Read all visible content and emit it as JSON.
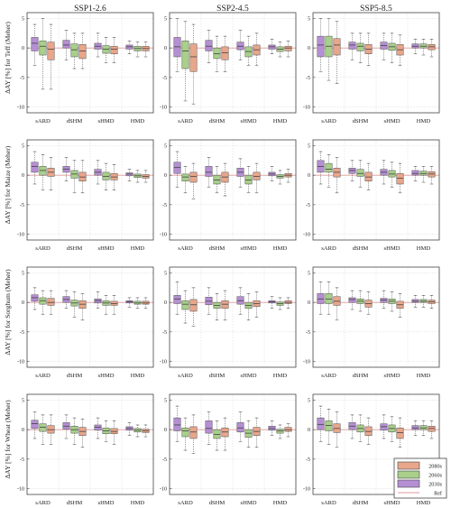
{
  "colors": {
    "2030s": "#b58fd3",
    "2060s": "#a9cf8a",
    "2080s": "#e8a68b",
    "ref": "#e0999c",
    "frame": "#444444",
    "grid": "#d4d4d4"
  },
  "chart_data": {
    "type": "box",
    "scenarios": [
      "SSP1-2.6",
      "SSP2-4.5",
      "SSP5-8.5"
    ],
    "crops_ylabels": [
      "ΔAY [%] for Teff (Meher)",
      "ΔAY [%] for Maize (Meher)",
      "ΔAY [%] for Sorghum (Meher)",
      "ΔAY [%] for Wheat (Meher)"
    ],
    "categories": [
      "sARD",
      "dSHM",
      "sHMD",
      "HMD"
    ],
    "yticks": [
      5,
      0,
      -5,
      -10
    ],
    "ylim": [
      -11,
      6
    ],
    "series": [
      "2030s",
      "2060s",
      "2080s"
    ],
    "legend": {
      "placement": "bottom-right",
      "entries": [
        "2080s",
        "2060s",
        "2030s",
        "Ref"
      ]
    },
    "ref_line": 0,
    "panels": [
      [
        [
          [
            -3,
            -0.5,
            0.8,
            1.8,
            4
          ],
          [
            -7,
            -1.2,
            0.3,
            1.2,
            5
          ],
          [
            -7,
            -2,
            -0.2,
            1,
            4
          ]
        ],
        [
          [
            -2,
            0,
            0.5,
            1.3,
            3
          ],
          [
            -3.5,
            -1.5,
            -0.3,
            0.7,
            2.5
          ],
          [
            -3.5,
            -1.8,
            -0.5,
            0.6,
            2.5
          ]
        ],
        [
          [
            -1.5,
            -0.2,
            0.3,
            0.8,
            2.5
          ],
          [
            -2.5,
            -0.9,
            -0.2,
            0.4,
            1.8
          ],
          [
            -2.5,
            -1,
            -0.2,
            0.3,
            1.8
          ]
        ],
        [
          [
            -1,
            -0.2,
            0.2,
            0.5,
            1.2
          ],
          [
            -1.5,
            -0.5,
            -0.1,
            0.3,
            1
          ],
          [
            -1.5,
            -0.5,
            -0.1,
            0.3,
            1
          ]
        ]
      ],
      [
        [
          [
            -4,
            -1.5,
            0.2,
            1.8,
            5
          ],
          [
            -9,
            -3.5,
            -0.5,
            1.2,
            4.5
          ],
          [
            -9.5,
            -4,
            -1.5,
            0.7,
            4
          ]
        ],
        [
          [
            -2.5,
            -0.5,
            0.3,
            1.3,
            3
          ],
          [
            -4,
            -1.8,
            -1,
            0,
            2
          ],
          [
            -4,
            -2,
            -0.8,
            0.2,
            2
          ]
        ],
        [
          [
            -2,
            -0.3,
            0.3,
            1,
            3
          ],
          [
            -3,
            -1.5,
            -0.6,
            0.2,
            2
          ],
          [
            -3,
            -1.2,
            -0.3,
            0.5,
            2.5
          ]
        ],
        [
          [
            -1,
            -0.2,
            0.2,
            0.5,
            1.5
          ],
          [
            -1.5,
            -0.6,
            -0.2,
            0.2,
            1
          ],
          [
            -1.5,
            -0.5,
            0,
            0.3,
            1.2
          ]
        ]
      ],
      [
        [
          [
            -4,
            -1.5,
            0.5,
            2,
            5
          ],
          [
            -5.5,
            -1.5,
            0.3,
            2,
            5
          ],
          [
            -6,
            -1.2,
            0.5,
            1.6,
            4.5
          ]
        ],
        [
          [
            -2,
            -0.2,
            0.5,
            1,
            2.5
          ],
          [
            -2.5,
            -0.5,
            0.3,
            0.8,
            2.5
          ],
          [
            -3,
            -1,
            -0.2,
            0.6,
            2.5
          ]
        ],
        [
          [
            -2,
            -0.2,
            0.4,
            1,
            2.5
          ],
          [
            -2.5,
            -0.4,
            0.2,
            0.8,
            2.5
          ],
          [
            -3,
            -1.2,
            -0.3,
            0.6,
            2.2
          ]
        ],
        [
          [
            -1,
            0,
            0.3,
            0.7,
            1.5
          ],
          [
            -1.2,
            0,
            0.3,
            0.7,
            1.5
          ],
          [
            -1.5,
            -0.3,
            0.2,
            0.6,
            1.5
          ]
        ]
      ]
    ],
    "panels_rows_2_to_4": [
      [
        [
          [
            [
              -1.5,
              0.5,
              1.5,
              2.2,
              4
            ],
            [
              -2.5,
              0,
              0.8,
              1.5,
              3.5
            ],
            [
              -2.5,
              -0.2,
              0.5,
              1.2,
              3
            ]
          ],
          [
            [
              -1,
              0.5,
              1,
              1.5,
              3
            ],
            [
              -3,
              -0.5,
              0.2,
              0.8,
              2.5
            ],
            [
              -3,
              -1,
              -0.3,
              0.5,
              2.5
            ]
          ],
          [
            [
              -1.5,
              0,
              0.5,
              1,
              2.5
            ],
            [
              -2.5,
              -0.8,
              -0.2,
              0.5,
              2
            ],
            [
              -2.5,
              -0.8,
              -0.3,
              0.3,
              1.8
            ]
          ],
          [
            [
              -1,
              -0.1,
              0.2,
              0.4,
              1
            ],
            [
              -1.2,
              -0.4,
              -0.1,
              0.2,
              0.8
            ],
            [
              -1.2,
              -0.5,
              -0.2,
              0.1,
              0.8
            ]
          ]
        ],
        [
          [
            [
              -2,
              0.3,
              1.3,
              2.2,
              4
            ],
            [
              -3,
              -1,
              -0.3,
              0.2,
              1.5
            ],
            [
              -4,
              -1.2,
              -0.2,
              0.5,
              2
            ]
          ],
          [
            [
              -2,
              -0.2,
              0.5,
              1.5,
              3
            ],
            [
              -3,
              -1.5,
              -0.8,
              0,
              1.5
            ],
            [
              -3.5,
              -1.2,
              -0.3,
              0.5,
              2
            ]
          ],
          [
            [
              -2,
              -0.2,
              0.5,
              1.2,
              2.8
            ],
            [
              -3,
              -1.5,
              -0.8,
              0,
              1.5
            ],
            [
              -3,
              -0.8,
              -0.2,
              0.5,
              2
            ]
          ],
          [
            [
              -1,
              -0.1,
              0.2,
              0.5,
              1.5
            ],
            [
              -1.5,
              -0.5,
              -0.2,
              0.1,
              0.8
            ],
            [
              -1.2,
              -0.3,
              0,
              0.3,
              1
            ]
          ]
        ],
        [
          [
            [
              -1.5,
              0.5,
              1.5,
              2.5,
              4
            ],
            [
              -2,
              0.5,
              1,
              2,
              3.5
            ],
            [
              -3,
              -0.3,
              0.5,
              1.2,
              3
            ]
          ],
          [
            [
              -1,
              0.3,
              0.8,
              1.2,
              2.5
            ],
            [
              -2,
              -0.2,
              0.3,
              1,
              2.5
            ],
            [
              -2.5,
              -1,
              -0.3,
              0.5,
              2
            ]
          ],
          [
            [
              -1.5,
              0,
              0.5,
              1,
              2.5
            ],
            [
              -2,
              -0.3,
              0.2,
              0.8,
              2.2
            ],
            [
              -3,
              -1.5,
              -0.5,
              0.3,
              2
            ]
          ],
          [
            [
              -1,
              0,
              0.3,
              0.8,
              1.5
            ],
            [
              -1.2,
              0,
              0.3,
              0.7,
              1.5
            ],
            [
              -1.5,
              -0.3,
              0.2,
              0.6,
              1.5
            ]
          ]
        ]
      ],
      [
        [
          [
            [
              -1.2,
              0.2,
              0.8,
              1.3,
              2.5
            ],
            [
              -2,
              -0.3,
              0.3,
              0.8,
              2
            ],
            [
              -2,
              -0.5,
              0,
              0.7,
              2
            ]
          ],
          [
            [
              -1,
              0,
              0.5,
              1,
              2
            ],
            [
              -2.5,
              -0.6,
              -0.1,
              0.4,
              1.8
            ],
            [
              -3,
              -1,
              -0.3,
              0.3,
              1.5
            ]
          ],
          [
            [
              -1,
              -0.1,
              0.3,
              0.6,
              1.8
            ],
            [
              -2,
              -0.5,
              -0.1,
              0.3,
              1.2
            ],
            [
              -2,
              -0.5,
              -0.2,
              0.2,
              1.2
            ]
          ],
          [
            [
              -0.8,
              -0.1,
              0.1,
              0.3,
              0.8
            ],
            [
              -1,
              -0.3,
              -0.1,
              0.2,
              0.8
            ],
            [
              -1,
              -0.3,
              -0.1,
              0.2,
              0.8
            ]
          ]
        ],
        [
          [
            [
              -2,
              -0.2,
              0.6,
              1.2,
              3.5
            ],
            [
              -3.5,
              -1.2,
              -0.3,
              0.3,
              2
            ],
            [
              -4,
              -1.5,
              -0.4,
              0.5,
              2.5
            ]
          ],
          [
            [
              -2,
              -0.4,
              0.2,
              0.9,
              2.5
            ],
            [
              -3,
              -1,
              -0.5,
              0,
              1.5
            ],
            [
              -3,
              -1,
              -0.3,
              0.3,
              2
            ]
          ],
          [
            [
              -2,
              -0.3,
              0.3,
              1,
              2.5
            ],
            [
              -3,
              -1,
              -0.5,
              0,
              1.5
            ],
            [
              -2.5,
              -0.7,
              -0.2,
              0.3,
              1.8
            ]
          ],
          [
            [
              -1,
              -0.1,
              0.1,
              0.3,
              1
            ],
            [
              -1.2,
              -0.5,
              -0.2,
              0.1,
              0.8
            ],
            [
              -1,
              -0.2,
              0,
              0.3,
              0.8
            ]
          ]
        ],
        [
          [
            [
              -2,
              -0.2,
              0.6,
              1.5,
              3.5
            ],
            [
              -2,
              -0.2,
              0.6,
              1.5,
              3.5
            ],
            [
              -3,
              -0.5,
              0.2,
              1,
              2.5
            ]
          ],
          [
            [
              -1.2,
              0,
              0.5,
              0.8,
              2
            ],
            [
              -1.5,
              -0.2,
              0.2,
              0.6,
              2
            ],
            [
              -2,
              -0.8,
              -0.2,
              0.4,
              1.8
            ]
          ],
          [
            [
              -1,
              0,
              0.4,
              0.7,
              2
            ],
            [
              -1.5,
              -0.2,
              0.2,
              0.6,
              1.8
            ],
            [
              -2.5,
              -1,
              -0.4,
              0.2,
              1.5
            ]
          ],
          [
            [
              -0.8,
              0,
              0.2,
              0.5,
              1.2
            ],
            [
              -0.8,
              0,
              0.2,
              0.5,
              1.2
            ],
            [
              -1,
              -0.2,
              0.1,
              0.4,
              1.2
            ]
          ]
        ]
      ],
      [
        [
          [
            [
              -1.5,
              0.2,
              1,
              1.6,
              3
            ],
            [
              -2.5,
              -0.3,
              0.4,
              1,
              2.5
            ],
            [
              -2.5,
              -0.6,
              0,
              0.7,
              2.5
            ]
          ],
          [
            [
              -1.5,
              0.1,
              0.6,
              1.2,
              2.5
            ],
            [
              -2.5,
              -0.6,
              0,
              0.6,
              2
            ],
            [
              -3,
              -1,
              -0.3,
              0.4,
              1.8
            ]
          ],
          [
            [
              -1.5,
              -0.1,
              0.4,
              0.8,
              2
            ],
            [
              -2,
              -0.7,
              -0.2,
              0.3,
              1.5
            ],
            [
              -2.5,
              -0.7,
              -0.3,
              0.2,
              1.5
            ]
          ],
          [
            [
              -1,
              -0.1,
              0.2,
              0.5,
              1.2
            ],
            [
              -1.2,
              -0.4,
              -0.1,
              0.2,
              0.8
            ],
            [
              -1.2,
              -0.5,
              -0.2,
              0.1,
              0.8
            ]
          ]
        ],
        [
          [
            [
              -2,
              -0.2,
              0.8,
              2,
              4
            ],
            [
              -3.5,
              -1.2,
              -0.2,
              0.3,
              2
            ],
            [
              -4,
              -1.5,
              -0.4,
              0.5,
              2.5
            ]
          ],
          [
            [
              -2.5,
              -0.6,
              0.2,
              1.5,
              3
            ],
            [
              -3.5,
              -1.5,
              -0.8,
              0,
              1.5
            ],
            [
              -3.5,
              -1.2,
              -0.4,
              0.3,
              2
            ]
          ],
          [
            [
              -2,
              -0.4,
              0.3,
              1.2,
              3
            ],
            [
              -3,
              -1.3,
              -0.6,
              0,
              1.5
            ],
            [
              -3,
              -1,
              -0.3,
              0.4,
              2
            ]
          ],
          [
            [
              -1,
              -0.1,
              0.2,
              0.6,
              1.5
            ],
            [
              -1.5,
              -0.6,
              -0.2,
              0.1,
              0.8
            ],
            [
              -1.2,
              -0.3,
              0,
              0.4,
              1
            ]
          ]
        ],
        [
          [
            [
              -2,
              0,
              0.9,
              2,
              4
            ],
            [
              -2.5,
              -0.2,
              0.7,
              1.5,
              3.5
            ],
            [
              -3,
              -0.5,
              0.2,
              1,
              3
            ]
          ],
          [
            [
              -1.5,
              0,
              0.6,
              1.2,
              2.5
            ],
            [
              -2,
              -0.4,
              0.2,
              0.8,
              2.5
            ],
            [
              -2.5,
              -1,
              -0.3,
              0.5,
              2
            ]
          ],
          [
            [
              -1.5,
              -0.1,
              0.5,
              1,
              2.5
            ],
            [
              -2,
              -0.4,
              0.2,
              0.8,
              2.2
            ],
            [
              -3,
              -1.5,
              -0.5,
              0.3,
              2
            ]
          ],
          [
            [
              -1,
              0,
              0.3,
              0.7,
              1.5
            ],
            [
              -1,
              0,
              0.3,
              0.7,
              1.5
            ],
            [
              -1.5,
              -0.3,
              0.2,
              0.6,
              1.5
            ]
          ]
        ]
      ]
    ]
  }
}
